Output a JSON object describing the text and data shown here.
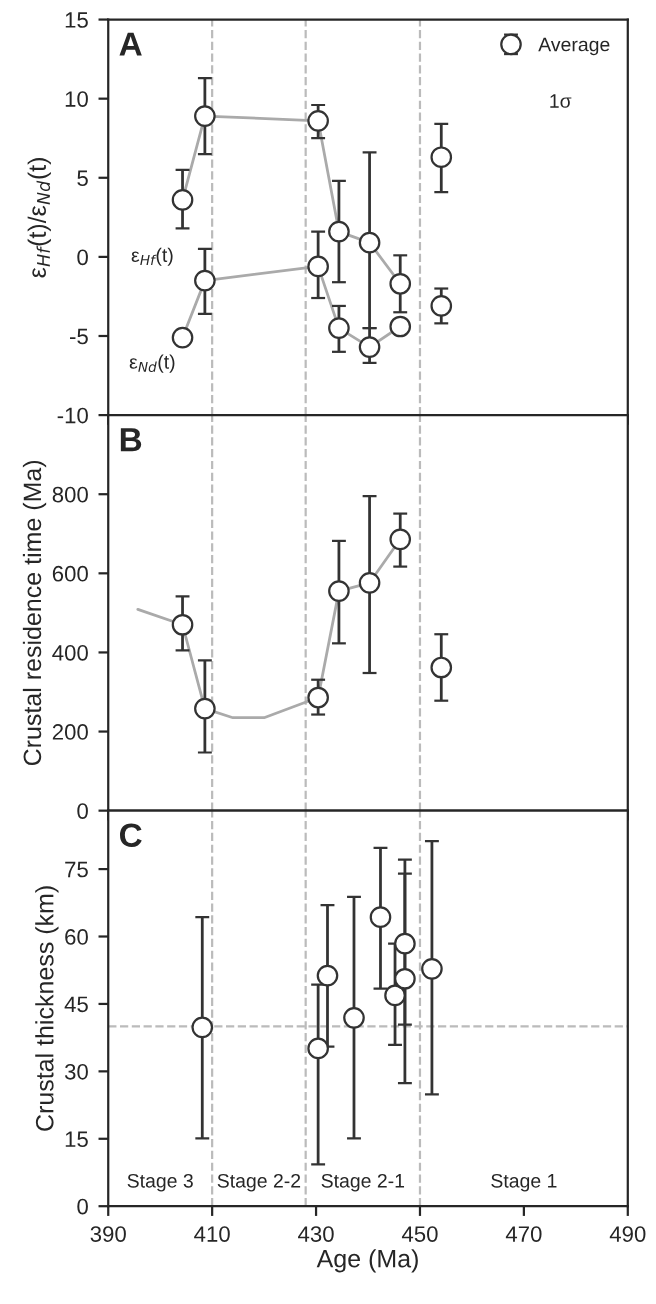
{
  "chart_data": [
    {
      "type": "scatter",
      "title": "A",
      "ylabel": "ε$_{Hf}$(t)/ε$_{Nd}$(t)",
      "xlim": [
        390,
        490
      ],
      "xticks": [
        390,
        410,
        430,
        450,
        470,
        490
      ],
      "ylim": [
        -10,
        15
      ],
      "yticks": [
        -10,
        -5,
        0,
        5,
        10,
        15
      ],
      "tick_labels": "y",
      "marker": "circle",
      "legend": "top right",
      "grid": false,
      "series": [
        {
          "type": "line",
          "marker": "none",
          "color": "#aaaaaa",
          "x": [
            404.3,
            408.6,
            430.4,
            434.4,
            440.3,
            446.2
          ],
          "values": [
            3.6,
            8.9,
            8.6,
            1.6,
            0.9,
            -1.7
          ]
        },
        {
          "type": "line",
          "marker": "none",
          "color": "#aaaaaa",
          "x": [
            404.3,
            408.6,
            430.4,
            434.4,
            440.3,
            446.2
          ],
          "values": [
            -5.1,
            -1.5,
            -0.6,
            -4.5,
            -5.7,
            -4.4
          ]
        },
        {
          "name": "Average",
          "color": "#333333",
          "x": [
            404.3,
            408.6,
            430.4,
            434.4,
            440.3,
            446.2,
            454.1
          ],
          "values": [
            3.6,
            8.9,
            8.6,
            1.6,
            0.9,
            -1.7,
            6.3
          ],
          "errors": [
            [
              1.8,
              5.5
            ],
            [
              6.5,
              11.3
            ],
            [
              7.5,
              9.6
            ],
            [
              -1.6,
              4.8
            ],
            [
              -4.5,
              6.6
            ],
            [
              -3.5,
              0.1
            ],
            [
              4.1,
              8.4
            ]
          ]
        },
        {
          "color": "#333333",
          "x": [
            404.3,
            408.6,
            430.4,
            434.4,
            440.3,
            446.2,
            454.1
          ],
          "values": [
            -5.1,
            -1.5,
            -0.6,
            -4.5,
            -5.7,
            -4.4,
            -3.1
          ],
          "errors": [
            null,
            [
              -3.6,
              0.5
            ],
            [
              -2.6,
              1.6
            ],
            [
              -6.0,
              -3.1
            ],
            [
              -6.7,
              -4.5
            ],
            null,
            [
              -4.2,
              -2.0
            ]
          ]
        }
      ],
      "ref_lines": [
        {
          "axis": "x",
          "value": 410,
          "color": "#bbbbbb",
          "line_style": "dashed"
        },
        {
          "axis": "x",
          "value": 428,
          "color": "#bbbbbb",
          "line_style": "dashed"
        },
        {
          "axis": "x",
          "value": 450,
          "color": "#bbbbbb",
          "line_style": "dashed"
        }
      ],
      "annotations": [
        "ε$_{Hf}$(t)",
        "ε$_{Nd}$(t)",
        "1σ"
      ]
    },
    {
      "type": "scatter",
      "title": "B",
      "ylabel": "Crustal residence time (Ma)",
      "xlim": [
        390,
        490
      ],
      "xticks": [
        390,
        410,
        430,
        450,
        470,
        490
      ],
      "ylim": [
        0,
        1000
      ],
      "yticks": [
        0,
        200,
        400,
        600,
        800
      ],
      "tick_labels": "y",
      "marker": "circle",
      "grid": false,
      "series": [
        {
          "type": "line",
          "marker": "none",
          "color": "#aaaaaa",
          "x": [
            395.7,
            404.3,
            408.6,
            414,
            420,
            430.4,
            434.4,
            440.3,
            446.2
          ],
          "values": [
            509,
            470,
            258,
            235,
            235,
            286,
            555,
            576,
            686
          ]
        },
        {
          "color": "#333333",
          "x": [
            404.3,
            408.6,
            430.4,
            434.4,
            440.3,
            446.2,
            454.1
          ],
          "values": [
            470,
            258,
            286,
            555,
            576,
            686,
            362
          ],
          "errors": [
            [
              405,
              542
            ],
            [
              147,
              380
            ],
            [
              243,
              331
            ],
            [
              423,
              682
            ],
            [
              348,
              795
            ],
            [
              617,
              751
            ],
            [
              278,
              446
            ]
          ]
        }
      ],
      "ref_lines": [
        {
          "axis": "x",
          "value": 410,
          "color": "#bbbbbb",
          "line_style": "dashed"
        },
        {
          "axis": "x",
          "value": 428,
          "color": "#bbbbbb",
          "line_style": "dashed"
        },
        {
          "axis": "x",
          "value": 450,
          "color": "#bbbbbb",
          "line_style": "dashed"
        }
      ]
    },
    {
      "type": "scatter",
      "title": "C",
      "xlabel": "Age (Ma)",
      "ylabel": "Crustal thickness (km)",
      "xlim": [
        390,
        490
      ],
      "xticks": [
        390,
        410,
        430,
        450,
        470,
        490
      ],
      "ylim": [
        0,
        88
      ],
      "yticks": [
        0,
        15,
        30,
        45,
        60,
        75
      ],
      "marker": "circle",
      "grid": false,
      "series": [
        {
          "color": "#333333",
          "x": [
            408.1,
            430.4,
            432.2,
            437.3,
            442.4,
            445.2,
            447.1,
            447.1,
            452.3
          ],
          "values": [
            39.8,
            35.1,
            51.3,
            41.9,
            64.3,
            46.9,
            58.4,
            50.6,
            52.8
          ],
          "errors": [
            [
              15.1,
              64.3
            ],
            [
              9.3,
              49.3
            ],
            [
              35.5,
              67.0
            ],
            [
              15.1,
              68.8
            ],
            [
              48.4,
              79.7
            ],
            [
              35.9,
              58.4
            ],
            [
              40.4,
              77.1
            ],
            [
              27.4,
              74.0
            ],
            [
              24.9,
              81.2
            ]
          ]
        }
      ],
      "ref_lines": [
        {
          "axis": "x",
          "value": 410,
          "color": "#bbbbbb",
          "line_style": "dashed"
        },
        {
          "axis": "x",
          "value": 428,
          "color": "#bbbbbb",
          "line_style": "dashed"
        },
        {
          "axis": "x",
          "value": 450,
          "color": "#bbbbbb",
          "line_style": "dashed"
        },
        {
          "axis": "y",
          "value": 40,
          "color": "#bbbbbb",
          "line_style": "dashed"
        }
      ],
      "annotations": [
        "Stage 3",
        "Stage 2-2",
        "Stage 2-1",
        "Stage 1"
      ]
    }
  ]
}
